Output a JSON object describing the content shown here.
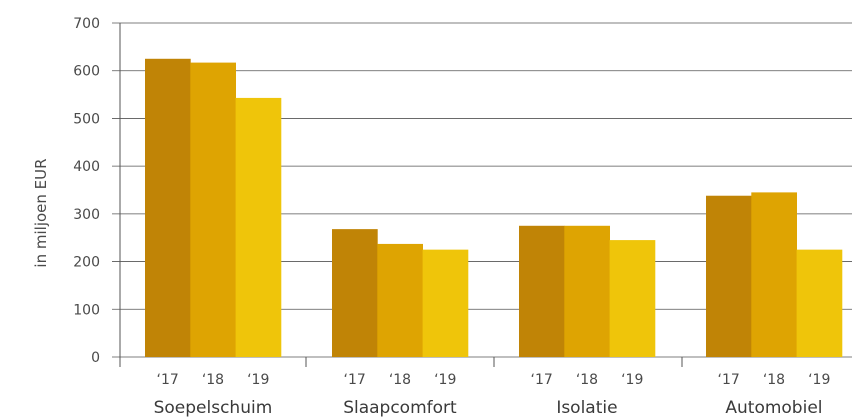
{
  "chart_data": {
    "type": "bar",
    "categories": [
      "Soepelschuim",
      "Slaapcomfort",
      "Isolatie",
      "Automobiel"
    ],
    "series_labels": [
      "‘17",
      "‘18",
      "‘19"
    ],
    "series": [
      {
        "values": [
          625,
          268,
          275,
          338
        ],
        "color": "#c08406"
      },
      {
        "values": [
          617,
          237,
          275,
          345
        ],
        "color": "#dea402"
      },
      {
        "values": [
          543,
          225,
          245,
          225
        ],
        "color": "#efc50a"
      }
    ],
    "ylabel": "in miljoen EUR",
    "ylim": [
      0,
      700
    ],
    "yticks": [
      0,
      100,
      200,
      300,
      400,
      500,
      600,
      700
    ],
    "grid": true
  }
}
